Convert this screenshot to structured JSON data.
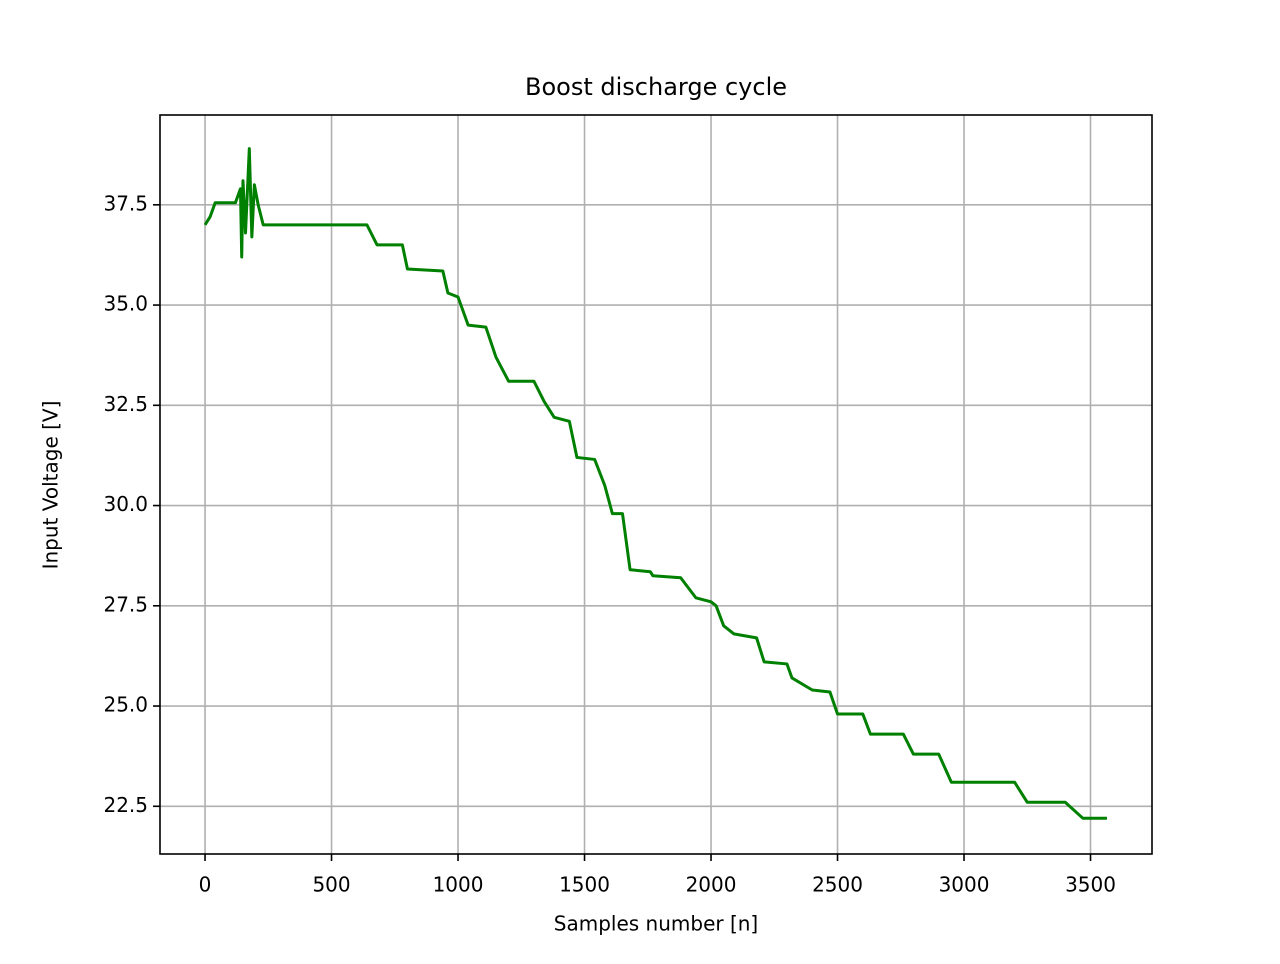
{
  "chart_data": {
    "type": "line",
    "title": "Boost discharge cycle",
    "x_label": "Samples  number [n]",
    "y_label": "Input Voltage [V]",
    "x": [
      0,
      20,
      40,
      120,
      140,
      145,
      150,
      160,
      175,
      185,
      195,
      210,
      230,
      640,
      680,
      780,
      800,
      940,
      960,
      1000,
      1040,
      1110,
      1150,
      1200,
      1300,
      1340,
      1380,
      1440,
      1470,
      1540,
      1580,
      1610,
      1650,
      1680,
      1760,
      1770,
      1880,
      1940,
      2000,
      2020,
      2050,
      2090,
      2180,
      2210,
      2300,
      2320,
      2400,
      2470,
      2500,
      2600,
      2630,
      2760,
      2800,
      2900,
      2950,
      3200,
      3250,
      3400,
      3470,
      3565
    ],
    "series": [
      {
        "color": "#008000",
        "values": [
          37.0,
          37.2,
          37.55,
          37.55,
          37.9,
          36.2,
          38.1,
          36.8,
          38.9,
          36.7,
          38.0,
          37.5,
          37.0,
          37.0,
          36.5,
          36.5,
          35.9,
          35.85,
          35.3,
          35.2,
          34.5,
          34.45,
          33.7,
          33.1,
          33.1,
          32.6,
          32.2,
          32.1,
          31.2,
          31.15,
          30.5,
          29.8,
          29.8,
          28.4,
          28.35,
          28.25,
          28.2,
          27.7,
          27.6,
          27.5,
          27.0,
          26.8,
          26.7,
          26.1,
          26.05,
          25.7,
          25.4,
          25.35,
          24.8,
          24.8,
          24.3,
          24.3,
          23.8,
          23.8,
          23.1,
          23.1,
          22.6,
          22.6,
          22.2,
          22.2
        ]
      }
    ],
    "xlim": [
      -178,
      3743
    ],
    "ylim": [
      21.31,
      39.74
    ],
    "xticks": [
      0,
      500,
      1000,
      1500,
      2000,
      2500,
      3000,
      3500
    ],
    "yticks": [
      22.5,
      {
        "value": 25,
        "label": "25.0"
      },
      27.5,
      {
        "value": 30,
        "label": "30.0"
      },
      32.5,
      {
        "value": 35,
        "label": "35.0"
      },
      37.5
    ],
    "grid": true
  }
}
